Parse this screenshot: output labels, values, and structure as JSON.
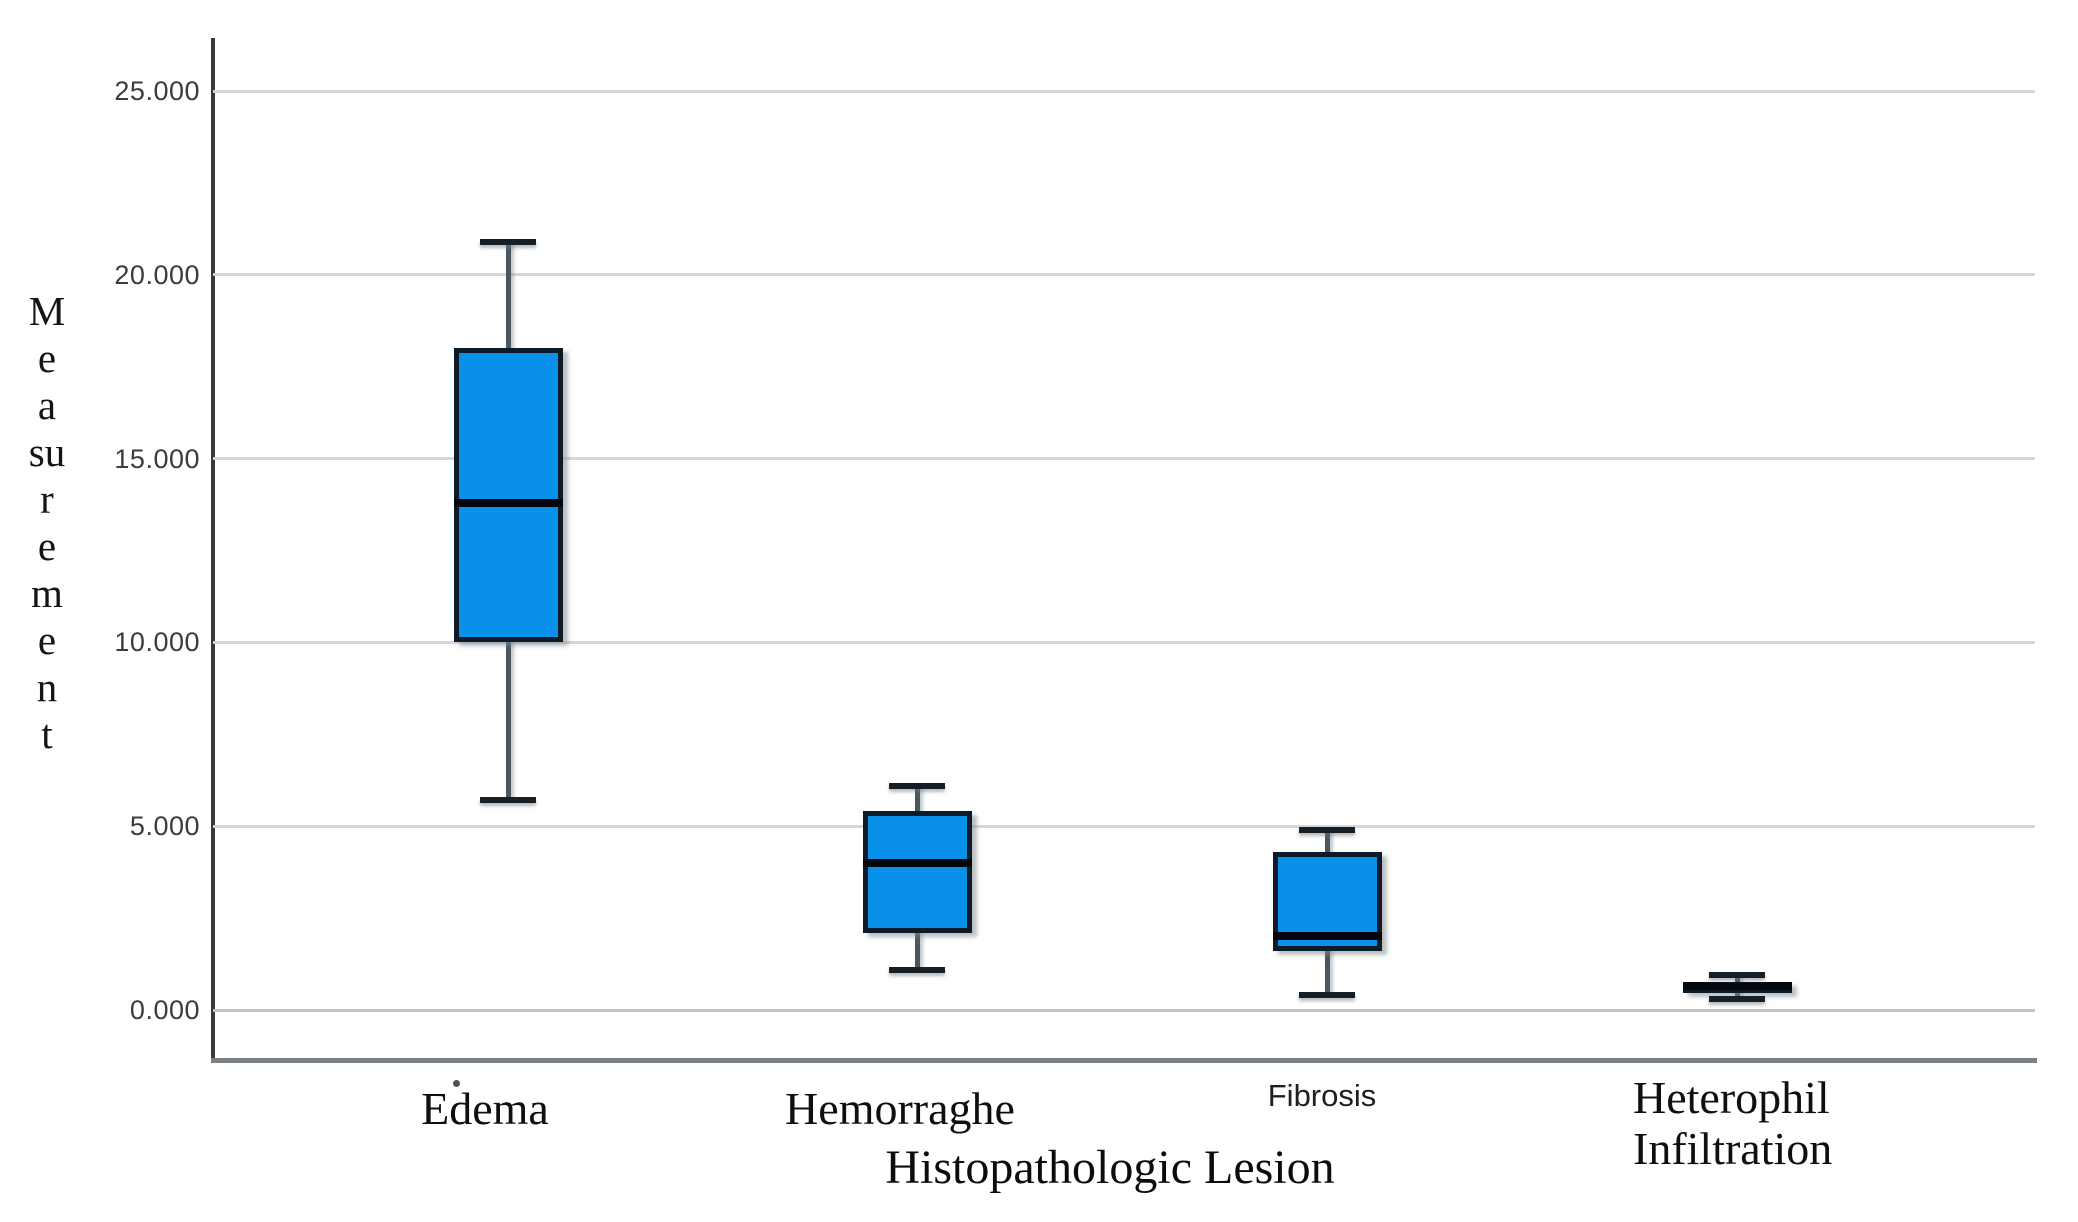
{
  "chart_data": {
    "type": "boxplot",
    "title": "",
    "xlabel": "Histopathologic Lesion",
    "ylabel": "Measurement",
    "ylabel_stacked_lines": [
      "M",
      "e",
      "a",
      "su",
      "r",
      "e",
      "m",
      "e",
      "n",
      "t"
    ],
    "y_ticks": [
      "25.000",
      "20.000",
      "15.000",
      "10.000",
      "5.000",
      "0.000"
    ],
    "y_tick_values": [
      25,
      20,
      15,
      10,
      5,
      0
    ],
    "ylim": [
      -1.4,
      26.4
    ],
    "grid": "horizontal",
    "legend": "none",
    "categories": [
      "Edema",
      "Hemorraghe",
      "Fibrosis",
      "Heterophil Infiltration"
    ],
    "series": [
      {
        "label": "Edema",
        "whisker_low": 5.7,
        "q1": 10.0,
        "median": 13.8,
        "q3": 18.0,
        "whisker_high": 20.9
      },
      {
        "label": "Hemorraghe",
        "whisker_low": 1.1,
        "q1": 2.1,
        "median": 4.0,
        "q3": 5.4,
        "whisker_high": 6.1
      },
      {
        "label": "Fibrosis",
        "whisker_low": 0.4,
        "q1": 1.6,
        "median": 2.0,
        "q3": 4.3,
        "whisker_high": 4.9
      },
      {
        "label": "Heterophil Infiltration",
        "whisker_low": 0.3,
        "q1": 0.45,
        "median": 0.65,
        "q3": 0.75,
        "whisker_high": 0.95
      }
    ],
    "colors": {
      "box_fill": "#0990e8",
      "box_border": "#0d1b28",
      "median": "#04080c",
      "whisker_stem": "#4a5660",
      "whisker_cap": "#171f26",
      "gridline": "#d4d6d8",
      "left_spine": "#34393d",
      "bottom_spine": "#7b8084",
      "background": "#ffffff"
    }
  },
  "x_axis": {
    "label_edema": "Edema",
    "label_hemorraghe": "Hemorraghe",
    "label_fibrosis": "Fibrosis",
    "label_heterophil_line1": "Heterophil",
    "label_heterophil_line2": "Infiltration",
    "axis_title": "Histopathologic Lesion"
  }
}
